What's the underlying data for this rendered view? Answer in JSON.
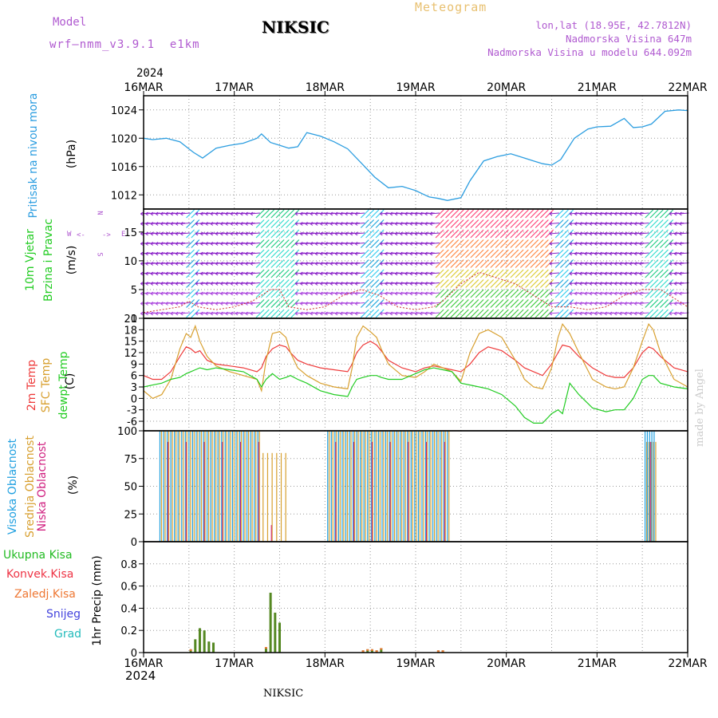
{
  "header": {
    "model_label": "Model",
    "model_name": "wrf—nmm_v3.9.1  e1km",
    "station": "NIKSIC",
    "meteogram": "Meteogram",
    "coords": "lon,lat (18.95E, 42.7812N)",
    "altitude": "Nadmorska Visina 647m",
    "model_altitude": "Nadmorska Visina u modelu 644.092m",
    "year": "2024",
    "footer_station": "NIKSIC",
    "made_by": "made by Angel"
  },
  "colors": {
    "pressure": "#2b9de0",
    "temp2m": "#ee3a3a",
    "sfc_temp": "#d8a030",
    "dewpoint": "#22cc22",
    "high_cloud": "#20a0e0",
    "mid_cloud": "#d8a030",
    "low_cloud": "#d02080",
    "total_precip": "#558822",
    "conv_precip": "#ee3344",
    "frozen_precip": "#ee7733",
    "snow": "#4444dd",
    "hail": "#22bbbb",
    "wind_purple": "#8a20c8",
    "grid": "#999999"
  },
  "dates": [
    "16MAR",
    "17MAR",
    "18MAR",
    "19MAR",
    "20MAR",
    "21MAR",
    "22MAR"
  ],
  "compass": {
    "n": "N",
    "s": "S",
    "e": "E",
    "w": "W"
  },
  "ylabels": {
    "pressure_name": "Pritisak na nivou mora",
    "pressure_unit": "(hPa)",
    "wind_name1": "10m Vjetar",
    "wind_name2": "Brzina i Pravac",
    "wind_unit": "(m/s)",
    "temp_name1": "2m Temp",
    "temp_name2": "SFC Temp",
    "temp_name3": "dewpt Temp",
    "temp_unit": "(C)",
    "cloud_name1": "Visoka Oblacnost",
    "cloud_name2": "Srednja Oblacnost",
    "cloud_name3": "Niska Oblacnost",
    "cloud_unit": "(%)",
    "precip_unit": "1hr Precip (mm)"
  },
  "legend": {
    "total": "Ukupna Kisa",
    "conv": "Konvek.Kisa",
    "frozen": "Zaledj.Kisa",
    "snow": "Snijeg",
    "hail": "Grad"
  },
  "chart_data": [
    {
      "type": "line",
      "name": "pressure",
      "ylim": [
        1010,
        1026
      ],
      "yticks": [
        1012,
        1016,
        1020,
        1024
      ],
      "x_days": [
        0,
        0.1,
        0.25,
        0.4,
        0.55,
        0.65,
        0.8,
        0.95,
        1.1,
        1.25,
        1.3,
        1.4,
        1.5,
        1.6,
        1.7,
        1.8,
        1.95,
        2.1,
        2.25,
        2.4,
        2.55,
        2.7,
        2.85,
        3.0,
        3.1,
        3.15,
        3.25,
        3.35,
        3.5,
        3.6,
        3.75,
        3.9,
        4.05,
        4.2,
        4.3,
        4.4,
        4.5,
        4.6,
        4.75,
        4.9,
        5.0,
        5.15,
        5.3,
        5.4,
        5.5,
        5.6,
        5.75,
        5.9,
        6.0
      ],
      "values": [
        1020,
        1019.8,
        1020,
        1019.5,
        1018,
        1017.2,
        1018.6,
        1019,
        1019.3,
        1020,
        1020.6,
        1019.4,
        1019,
        1018.6,
        1018.8,
        1020.8,
        1020.3,
        1019.5,
        1018.5,
        1016.5,
        1014.5,
        1013,
        1013.2,
        1012.6,
        1012,
        1011.7,
        1011.5,
        1011.2,
        1011.6,
        1014,
        1016.8,
        1017.4,
        1017.8,
        1017.2,
        1016.8,
        1016.4,
        1016.2,
        1017,
        1020,
        1021.3,
        1021.6,
        1021.7,
        1022.8,
        1021.5,
        1021.6,
        1022,
        1023.8,
        1024,
        1023.9
      ]
    },
    {
      "type": "line",
      "name": "temperatures",
      "ylim": [
        -8.5,
        21
      ],
      "yticks": [
        -6,
        -3,
        0,
        3,
        6,
        9,
        12,
        15,
        18,
        21
      ],
      "x_days": [
        0,
        0.1,
        0.2,
        0.3,
        0.4,
        0.47,
        0.52,
        0.57,
        0.62,
        0.7,
        0.8,
        0.95,
        1.1,
        1.25,
        1.3,
        1.35,
        1.42,
        1.5,
        1.57,
        1.62,
        1.7,
        1.8,
        1.95,
        2.1,
        2.25,
        2.3,
        2.35,
        2.42,
        2.5,
        2.57,
        2.62,
        2.7,
        2.85,
        3.0,
        3.1,
        3.2,
        3.3,
        3.4,
        3.5,
        3.6,
        3.7,
        3.8,
        3.95,
        4.1,
        4.2,
        4.3,
        4.4,
        4.5,
        4.57,
        4.62,
        4.7,
        4.8,
        4.95,
        5.1,
        5.2,
        5.3,
        5.4,
        5.5,
        5.57,
        5.62,
        5.7,
        5.85,
        6.0
      ],
      "series": [
        {
          "name": "2m Temp",
          "values": [
            6,
            5,
            5,
            7,
            11,
            13.5,
            13,
            12,
            12.5,
            10,
            9,
            8.5,
            8,
            7,
            8,
            11,
            13,
            14,
            13.5,
            12,
            10,
            9,
            8,
            7.5,
            7,
            9,
            12,
            14,
            15,
            14,
            12.5,
            10,
            8,
            7,
            8,
            8.5,
            8,
            7.5,
            7,
            9,
            12,
            13.5,
            12.5,
            10,
            8,
            7,
            6,
            9,
            12,
            14,
            13.5,
            11,
            8,
            6,
            5.5,
            5.5,
            8,
            12,
            13.5,
            13,
            11,
            8,
            7
          ]
        },
        {
          "name": "SFC Temp",
          "values": [
            2,
            0,
            1,
            5,
            13,
            17,
            16,
            19,
            15,
            11,
            8.5,
            7,
            6,
            5,
            2,
            10,
            17,
            17.5,
            16,
            12,
            8,
            6,
            4,
            3,
            2.5,
            8,
            16,
            19,
            17.5,
            16,
            13,
            9,
            6,
            5.5,
            7,
            9,
            8,
            7,
            4.5,
            12,
            17,
            18,
            16,
            10,
            5,
            3,
            2.5,
            8,
            16,
            19.5,
            17,
            12,
            5,
            3,
            2.5,
            3,
            8,
            15,
            19.5,
            18,
            12,
            5,
            3
          ]
        },
        {
          "name": "dewpt Temp",
          "values": [
            3,
            3.5,
            4,
            5,
            5.5,
            6.5,
            7,
            7.5,
            8,
            7.5,
            8,
            7.5,
            7,
            5,
            3,
            5,
            6.5,
            5,
            5.5,
            6,
            5,
            4,
            2,
            1,
            0.5,
            3,
            5,
            5.5,
            6,
            6,
            5.5,
            5,
            5,
            6.5,
            7.5,
            8,
            7.5,
            7,
            4,
            3.5,
            3,
            2.5,
            1,
            -2,
            -5,
            -6.5,
            -6.5,
            -4,
            -3,
            -4,
            4,
            1,
            -2.5,
            -3.5,
            -3,
            -3,
            0,
            5,
            6,
            6,
            4,
            3,
            2.5
          ]
        }
      ]
    },
    {
      "type": "bar",
      "name": "cloud_cover",
      "ylim": [
        0,
        100
      ],
      "yticks": [
        0,
        25,
        50,
        75,
        100
      ],
      "groups": [
        {
          "x_start_day": 0.18,
          "x_end_day": 1.28,
          "step": 0.04,
          "high": 100,
          "mid": 100,
          "low": 0
        },
        {
          "x_start_day": 1.3,
          "x_end_day": 1.55,
          "step": 0.05,
          "high": 0,
          "mid": 80,
          "low": 0
        },
        {
          "x_start_day": 2.03,
          "x_end_day": 3.35,
          "step": 0.04,
          "high": 100,
          "mid": 100,
          "low": 0
        },
        {
          "x_start_day": 5.53,
          "x_end_day": 5.63,
          "step": 0.025,
          "high": 100,
          "mid": 90,
          "low": 0
        }
      ]
    },
    {
      "type": "bar",
      "name": "precipitation",
      "ylim": [
        0,
        1.0
      ],
      "yticks": [
        0,
        0.2,
        0.4,
        0.6,
        0.8
      ],
      "x_days": [
        0.52,
        0.57,
        0.62,
        0.67,
        0.72,
        0.77,
        1.35,
        1.4,
        1.45,
        1.5,
        2.42,
        2.47,
        2.52,
        2.57,
        2.62,
        3.25,
        3.3
      ],
      "values": [
        0.03,
        0.12,
        0.22,
        0.2,
        0.1,
        0.09,
        0.05,
        0.54,
        0.36,
        0.27,
        0.02,
        0.03,
        0.03,
        0.02,
        0.04,
        0.02,
        0.02
      ]
    },
    {
      "type": "line",
      "name": "wind_speed",
      "ylim": [
        0,
        19
      ],
      "yticks": [
        0,
        5,
        10,
        15
      ],
      "x_days": [
        0,
        0.2,
        0.4,
        0.5,
        0.6,
        0.8,
        1.0,
        1.2,
        1.3,
        1.4,
        1.5,
        1.6,
        1.8,
        2.0,
        2.2,
        2.4,
        2.6,
        2.8,
        3.0,
        3.2,
        3.3,
        3.5,
        3.7,
        3.9,
        4.1,
        4.3,
        4.5,
        4.7,
        4.9,
        5.1,
        5.3,
        5.5,
        5.7,
        5.9,
        6.0
      ],
      "values": [
        1,
        1.5,
        2,
        3,
        2,
        1.5,
        2,
        3,
        4,
        5,
        5,
        2,
        1.5,
        2,
        4,
        5,
        4,
        2,
        1.5,
        2,
        3,
        6,
        8,
        7,
        6,
        4,
        2,
        2,
        1.5,
        2,
        4,
        5,
        5,
        3,
        2
      ]
    }
  ]
}
